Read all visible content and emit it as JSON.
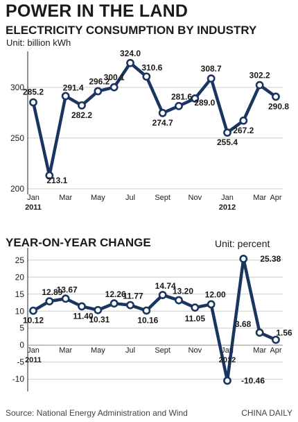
{
  "header": {
    "title": "POWER IN THE LAND",
    "subtitle1": "ELECTRICITY CONSUMPTION BY INDUSTRY",
    "unit1": "Unit: billion kWh",
    "subtitle2": "YEAR-ON-YEAR CHANGE",
    "unit2": "Unit: percent"
  },
  "footer": {
    "source": "Source: National Energy Administration and Wind",
    "credit": "CHINA DAILY"
  },
  "colors": {
    "line": "#1a3560",
    "marker_fill": "#ffffff",
    "grid": "#cccccc",
    "axis": "#222222",
    "text": "#1a1a1a"
  },
  "chart_data": [
    {
      "type": "line",
      "title": "ELECTRICITY CONSUMPTION BY INDUSTRY",
      "ylabel": "Unit: billion kWh",
      "x": [
        "Jan 2011",
        "Feb 2011",
        "Mar 2011",
        "Apr 2011",
        "May 2011",
        "Jun 2011",
        "Jul 2011",
        "Aug 2011",
        "Sep 2011",
        "Oct 2011",
        "Nov 2011",
        "Dec 2011",
        "Jan 2012",
        "Feb 2012",
        "Mar 2012",
        "Apr 2012"
      ],
      "values": [
        285.2,
        213.1,
        291.4,
        282.2,
        296.2,
        300.1,
        324.0,
        310.6,
        274.7,
        281.6,
        289.0,
        308.7,
        255.4,
        267.2,
        302.2,
        290.8
      ],
      "labels": [
        "285.2",
        "213.1",
        "291.4",
        "282.2",
        "296.2",
        "300.1",
        "324.0",
        "310.6",
        "274.7",
        "281.6",
        "289.0",
        "308.7",
        "255.4",
        "267.2",
        "302.2",
        "290.8"
      ],
      "ylim": [
        200,
        330
      ],
      "yticks": [
        200,
        250,
        300
      ],
      "ytick_labels": [
        "200",
        "250",
        "300"
      ],
      "xtick_labels": [
        {
          "i": 0,
          "top": "Jan",
          "bottom": "2011"
        },
        {
          "i": 2,
          "top": "Mar",
          "bottom": ""
        },
        {
          "i": 4,
          "top": "May",
          "bottom": ""
        },
        {
          "i": 6,
          "top": "Jul",
          "bottom": ""
        },
        {
          "i": 8,
          "top": "Sept",
          "bottom": ""
        },
        {
          "i": 10,
          "top": "Nov",
          "bottom": ""
        },
        {
          "i": 12,
          "top": "Jan",
          "bottom": "2012"
        },
        {
          "i": 14,
          "top": "Mar",
          "bottom": ""
        },
        {
          "i": 15,
          "top": "Apr",
          "bottom": ""
        }
      ],
      "grid": true
    },
    {
      "type": "line",
      "title": "YEAR-ON-YEAR CHANGE",
      "ylabel": "Unit: percent",
      "x": [
        "Jan 2011",
        "Feb 2011",
        "Mar 2011",
        "Apr 2011",
        "May 2011",
        "Jun 2011",
        "Jul 2011",
        "Aug 2011",
        "Sep 2011",
        "Oct 2011",
        "Nov 2011",
        "Dec 2011",
        "Jan 2012",
        "Feb 2012",
        "Mar 2012",
        "Apr 2012"
      ],
      "values": [
        10.12,
        12.89,
        13.67,
        11.4,
        10.31,
        12.26,
        11.77,
        10.16,
        14.74,
        13.2,
        11.05,
        12.0,
        -10.46,
        25.38,
        3.68,
        1.56
      ],
      "labels": [
        "10.12",
        "12.89",
        "13.67",
        "11.40",
        "10.31",
        "12.26",
        "11.77",
        "10.16",
        "14.74",
        "13.20",
        "11.05",
        "12.00",
        "-10.46",
        "25.38",
        "3.68",
        "1.56"
      ],
      "ylim": [
        -12,
        27
      ],
      "yticks": [
        -10,
        -5,
        0,
        5,
        10,
        15,
        20,
        25
      ],
      "ytick_labels": [
        "-10",
        "-5",
        "0",
        "5",
        "10",
        "15",
        "20",
        "25"
      ],
      "xtick_labels": [
        {
          "i": 0,
          "top": "Jan",
          "bottom": "2011"
        },
        {
          "i": 2,
          "top": "Mar",
          "bottom": ""
        },
        {
          "i": 4,
          "top": "May",
          "bottom": ""
        },
        {
          "i": 6,
          "top": "Jul",
          "bottom": ""
        },
        {
          "i": 8,
          "top": "Sept",
          "bottom": ""
        },
        {
          "i": 10,
          "top": "Nov",
          "bottom": ""
        },
        {
          "i": 12,
          "top": "Jan",
          "bottom": "2012"
        },
        {
          "i": 14,
          "top": "Mar",
          "bottom": ""
        },
        {
          "i": 15,
          "top": "Apr",
          "bottom": ""
        }
      ],
      "grid": true
    }
  ]
}
